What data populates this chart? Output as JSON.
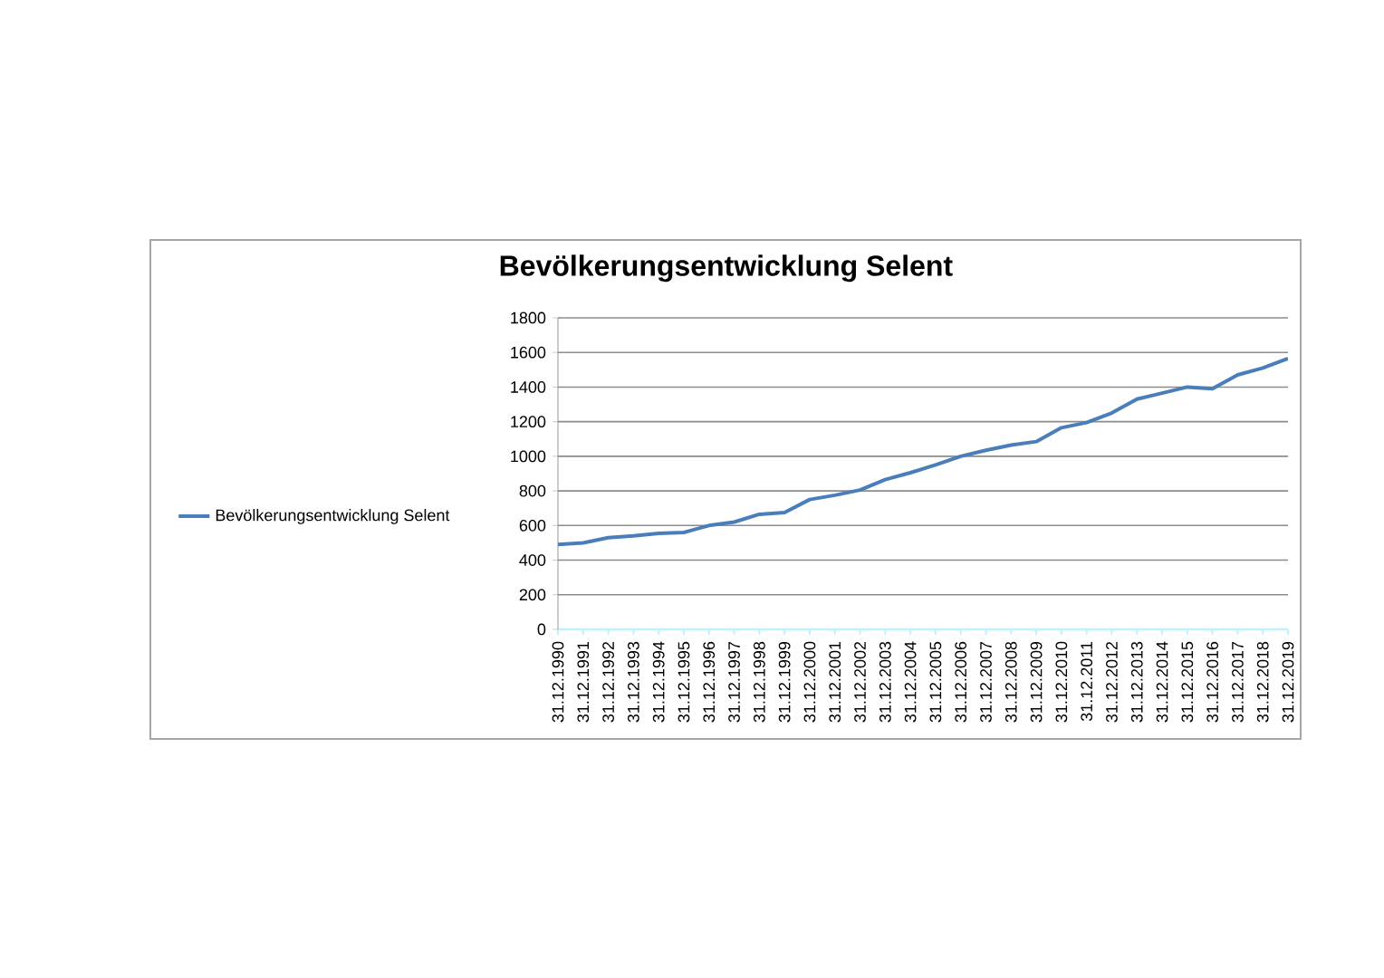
{
  "chart_data": {
    "type": "line",
    "title": "Bevölkerungsentwicklung Selent",
    "categories": [
      "31.12.1990",
      "31.12.1991",
      "31.12.1992",
      "31.12.1993",
      "31.12.1994",
      "31.12.1995",
      "31.12.1996",
      "31.12.1997",
      "31.12.1998",
      "31.12.1999",
      "31.12.2000",
      "31.12.2001",
      "31.12.2002",
      "31.12.2003",
      "31.12.2004",
      "31.12.2005",
      "31.12.2006",
      "31.12.2007",
      "31.12.2008",
      "31.12.2009",
      "31.12.2010",
      "31.12.2011",
      "31.12.2012",
      "31.12.2013",
      "31.12.2014",
      "31.12.2015",
      "31.12.2016",
      "31.12.2017",
      "31.12.2018",
      "31.12.2019"
    ],
    "series": [
      {
        "name": "Bevölkerungsentwicklung Selent",
        "color": "#4a7ebb",
        "values": [
          490,
          500,
          530,
          540,
          555,
          560,
          600,
          620,
          665,
          675,
          750,
          775,
          805,
          865,
          905,
          950,
          1000,
          1035,
          1065,
          1085,
          1165,
          1195,
          1250,
          1330,
          1365,
          1400,
          1390,
          1470,
          1510,
          1565
        ]
      }
    ],
    "ylim": [
      0,
      1800
    ],
    "yticks": [
      0,
      200,
      400,
      600,
      800,
      1000,
      1200,
      1400,
      1600,
      1800
    ],
    "grid": "y",
    "legend": "left",
    "marker": "none",
    "line_style": "solid"
  }
}
